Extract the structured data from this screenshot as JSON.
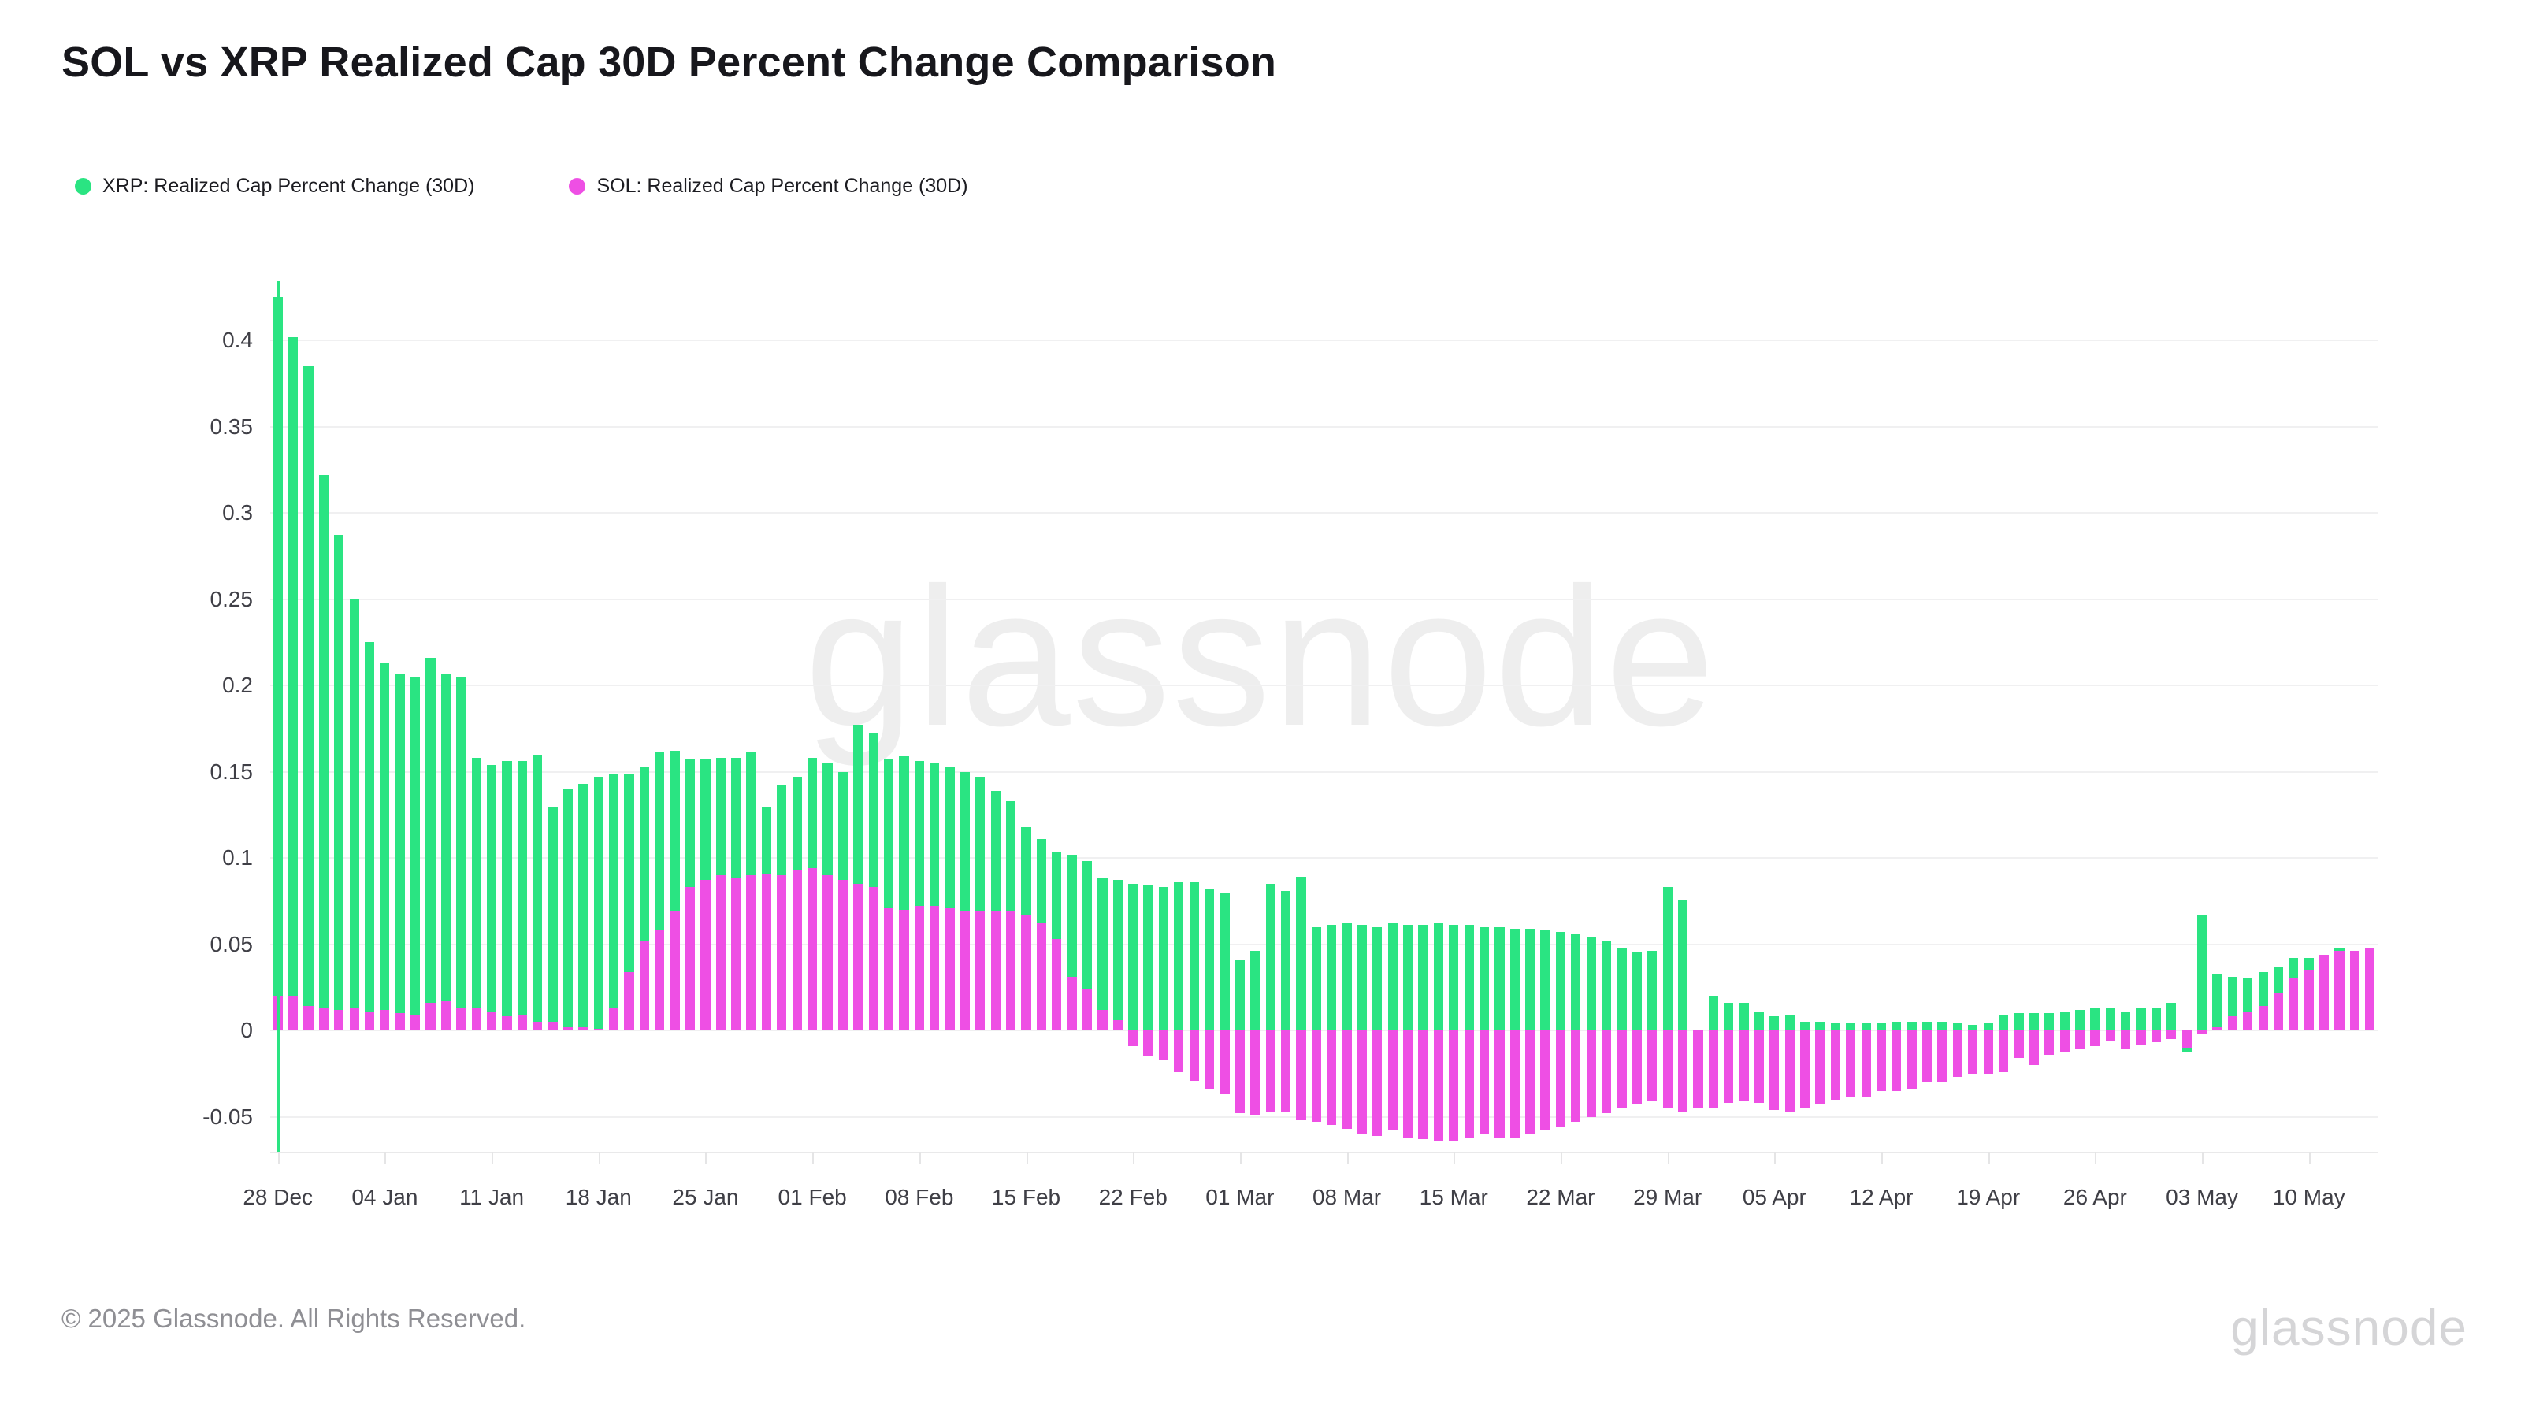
{
  "title": "SOL vs XRP Realized Cap 30D Percent Change Comparison",
  "legend": {
    "items": [
      {
        "label": "XRP: Realized Cap Percent Change (30D)",
        "color": "#2ae482"
      },
      {
        "label": "SOL: Realized Cap Percent Change (30D)",
        "color": "#ee4fe4"
      }
    ]
  },
  "watermark": "glassnode",
  "footer": {
    "copyright": "© 2025 Glassnode. All Rights Reserved.",
    "logo": "glassnode"
  },
  "chart_data": {
    "type": "bar",
    "mode": "overlaid",
    "title": "SOL vs XRP Realized Cap 30D Percent Change Comparison",
    "xlabel": "",
    "ylabel": "",
    "ylim": [
      -0.075,
      0.432
    ],
    "yticks": [
      0.4,
      0.35,
      0.3,
      0.25,
      0.2,
      0.15,
      0.1,
      0.05,
      0,
      -0.05
    ],
    "grid": "horizontal",
    "legend_position": "top-left",
    "xtick_every_days": 7,
    "xtick_labels": [
      "28 Dec",
      "04 Jan",
      "11 Jan",
      "18 Jan",
      "25 Jan",
      "01 Feb",
      "08 Feb",
      "15 Feb",
      "22 Feb",
      "01 Mar",
      "08 Mar",
      "15 Mar",
      "22 Mar",
      "29 Mar",
      "05 Apr",
      "12 Apr",
      "19 Apr",
      "26 Apr",
      "03 May",
      "10 May"
    ],
    "x": [
      "28 Dec",
      "29 Dec",
      "30 Dec",
      "31 Dec",
      "01 Jan",
      "02 Jan",
      "03 Jan",
      "04 Jan",
      "05 Jan",
      "06 Jan",
      "07 Jan",
      "08 Jan",
      "09 Jan",
      "10 Jan",
      "11 Jan",
      "12 Jan",
      "13 Jan",
      "14 Jan",
      "15 Jan",
      "16 Jan",
      "17 Jan",
      "18 Jan",
      "19 Jan",
      "20 Jan",
      "21 Jan",
      "22 Jan",
      "23 Jan",
      "24 Jan",
      "25 Jan",
      "26 Jan",
      "27 Jan",
      "28 Jan",
      "29 Jan",
      "30 Jan",
      "31 Jan",
      "01 Feb",
      "02 Feb",
      "03 Feb",
      "04 Feb",
      "05 Feb",
      "06 Feb",
      "07 Feb",
      "08 Feb",
      "09 Feb",
      "10 Feb",
      "11 Feb",
      "12 Feb",
      "13 Feb",
      "14 Feb",
      "15 Feb",
      "16 Feb",
      "17 Feb",
      "18 Feb",
      "19 Feb",
      "20 Feb",
      "21 Feb",
      "22 Feb",
      "23 Feb",
      "24 Feb",
      "25 Feb",
      "26 Feb",
      "27 Feb",
      "28 Feb",
      "01 Mar",
      "02 Mar",
      "03 Mar",
      "04 Mar",
      "05 Mar",
      "06 Mar",
      "07 Mar",
      "08 Mar",
      "09 Mar",
      "10 Mar",
      "11 Mar",
      "12 Mar",
      "13 Mar",
      "14 Mar",
      "15 Mar",
      "16 Mar",
      "17 Mar",
      "18 Mar",
      "19 Mar",
      "20 Mar",
      "21 Mar",
      "22 Mar",
      "23 Mar",
      "24 Mar",
      "25 Mar",
      "26 Mar",
      "27 Mar",
      "28 Mar",
      "29 Mar",
      "30 Mar",
      "31 Mar",
      "01 Apr",
      "02 Apr",
      "03 Apr",
      "04 Apr",
      "05 Apr",
      "06 Apr",
      "07 Apr",
      "08 Apr",
      "09 Apr",
      "10 Apr",
      "11 Apr",
      "12 Apr",
      "13 Apr",
      "14 Apr",
      "15 Apr",
      "16 Apr",
      "17 Apr",
      "18 Apr",
      "19 Apr",
      "20 Apr",
      "21 Apr",
      "22 Apr",
      "23 Apr",
      "24 Apr",
      "25 Apr",
      "26 Apr",
      "27 Apr",
      "28 Apr",
      "29 Apr",
      "30 Apr",
      "01 May",
      "02 May",
      "03 May",
      "04 May",
      "05 May",
      "06 May",
      "07 May",
      "08 May",
      "09 May",
      "10 May",
      "11 May",
      "12 May",
      "13 May",
      "14 May"
    ],
    "series": [
      {
        "name": "XRP: Realized Cap Percent Change (30D)",
        "color": "#2ae482",
        "values": [
          0.425,
          0.402,
          0.385,
          0.322,
          0.287,
          0.25,
          0.225,
          0.213,
          0.207,
          0.205,
          0.216,
          0.207,
          0.205,
          0.158,
          0.154,
          0.156,
          0.156,
          0.16,
          0.129,
          0.14,
          0.143,
          0.147,
          0.149,
          0.149,
          0.153,
          0.161,
          0.162,
          0.157,
          0.157,
          0.158,
          0.158,
          0.161,
          0.129,
          0.142,
          0.147,
          0.158,
          0.155,
          0.15,
          0.177,
          0.172,
          0.157,
          0.159,
          0.156,
          0.155,
          0.153,
          0.15,
          0.147,
          0.139,
          0.133,
          0.118,
          0.111,
          0.103,
          0.102,
          0.098,
          0.088,
          0.087,
          0.085,
          0.084,
          0.083,
          0.086,
          0.086,
          0.082,
          0.08,
          0.041,
          0.046,
          0.085,
          0.081,
          0.089,
          0.06,
          0.061,
          0.062,
          0.061,
          0.06,
          0.062,
          0.061,
          0.061,
          0.062,
          0.061,
          0.061,
          0.06,
          0.06,
          0.059,
          0.059,
          0.058,
          0.057,
          0.056,
          0.054,
          0.052,
          0.048,
          0.045,
          0.046,
          0.083,
          0.076,
          0.0,
          0.02,
          0.016,
          0.016,
          0.011,
          0.008,
          0.009,
          0.005,
          0.005,
          0.004,
          0.004,
          0.004,
          0.004,
          0.005,
          0.005,
          0.005,
          0.005,
          0.004,
          0.003,
          0.004,
          0.009,
          0.01,
          0.01,
          0.01,
          0.011,
          0.012,
          0.013,
          0.013,
          0.011,
          0.013,
          0.013,
          0.016,
          -0.013,
          0.067,
          0.033,
          0.031,
          0.03,
          0.034,
          0.037,
          0.042,
          0.042,
          0.044,
          0.048,
          0.046,
          0.048
        ]
      },
      {
        "name": "SOL: Realized Cap Percent Change (30D)",
        "color": "#ee4fe4",
        "values": [
          0.02,
          0.02,
          0.014,
          0.013,
          0.012,
          0.013,
          0.011,
          0.012,
          0.01,
          0.009,
          0.016,
          0.017,
          0.013,
          0.013,
          0.011,
          0.008,
          0.009,
          0.005,
          0.005,
          0.002,
          0.002,
          0.001,
          0.013,
          0.034,
          0.052,
          0.058,
          0.069,
          0.083,
          0.087,
          0.09,
          0.088,
          0.09,
          0.091,
          0.09,
          0.093,
          0.094,
          0.09,
          0.087,
          0.085,
          0.083,
          0.071,
          0.07,
          0.072,
          0.072,
          0.071,
          0.069,
          0.069,
          0.069,
          0.069,
          0.067,
          0.062,
          0.053,
          0.031,
          0.024,
          0.012,
          0.006,
          -0.009,
          -0.015,
          -0.017,
          -0.024,
          -0.029,
          -0.034,
          -0.037,
          -0.048,
          -0.049,
          -0.047,
          -0.047,
          -0.052,
          -0.053,
          -0.055,
          -0.057,
          -0.06,
          -0.061,
          -0.058,
          -0.062,
          -0.063,
          -0.064,
          -0.064,
          -0.062,
          -0.06,
          -0.062,
          -0.062,
          -0.06,
          -0.058,
          -0.056,
          -0.053,
          -0.05,
          -0.048,
          -0.045,
          -0.043,
          -0.041,
          -0.045,
          -0.047,
          -0.045,
          -0.045,
          -0.042,
          -0.041,
          -0.042,
          -0.046,
          -0.047,
          -0.045,
          -0.043,
          -0.04,
          -0.039,
          -0.039,
          -0.035,
          -0.035,
          -0.034,
          -0.03,
          -0.03,
          -0.027,
          -0.025,
          -0.025,
          -0.024,
          -0.016,
          -0.02,
          -0.014,
          -0.013,
          -0.011,
          -0.009,
          -0.006,
          -0.011,
          -0.008,
          -0.007,
          -0.005,
          -0.01,
          -0.002,
          0.002,
          0.008,
          0.011,
          0.014,
          0.022,
          0.03,
          0.035,
          0.044,
          0.046,
          0.046,
          0.048
        ]
      }
    ]
  }
}
